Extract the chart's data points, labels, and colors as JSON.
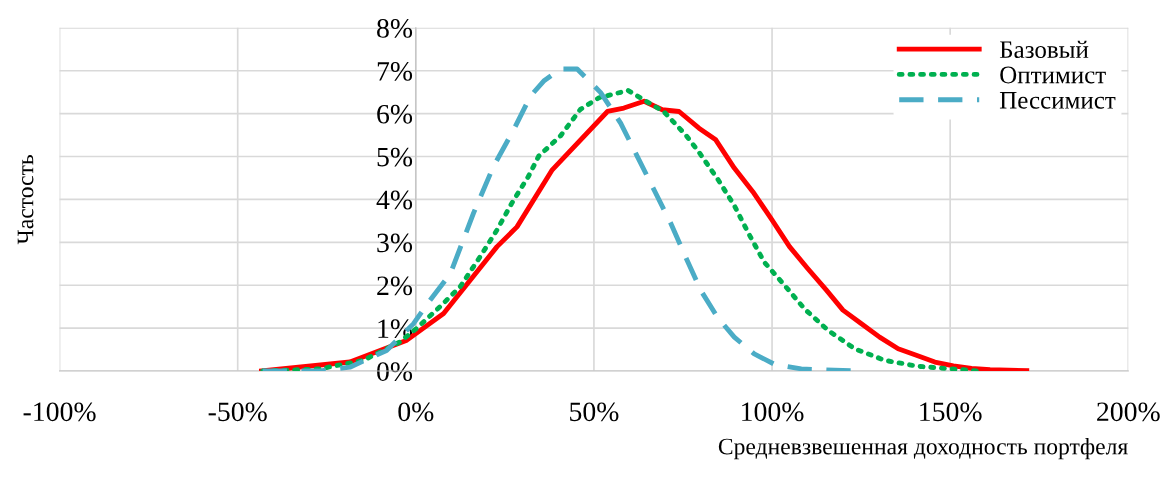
{
  "chart_data": {
    "type": "line",
    "xlabel": "Средневзвешенная доходность портфеля",
    "ylabel": "Частость",
    "xlim": [
      -100,
      200
    ],
    "ylim": [
      0,
      8
    ],
    "xticks": [
      {
        "value": -100,
        "label": "-100%"
      },
      {
        "value": -50,
        "label": "-50%"
      },
      {
        "value": 0,
        "label": "0%"
      },
      {
        "value": 50,
        "label": "50%"
      },
      {
        "value": 100,
        "label": "100%"
      },
      {
        "value": 150,
        "label": "150%"
      },
      {
        "value": 200,
        "label": "200%"
      }
    ],
    "yticks": [
      {
        "value": 0,
        "label": "0%"
      },
      {
        "value": 1,
        "label": "1%"
      },
      {
        "value": 2,
        "label": "2%"
      },
      {
        "value": 3,
        "label": "3%"
      },
      {
        "value": 4,
        "label": "4%"
      },
      {
        "value": 5,
        "label": "5%"
      },
      {
        "value": 6,
        "label": "6%"
      },
      {
        "value": 7,
        "label": "7%"
      },
      {
        "value": 8,
        "label": "8%"
      }
    ],
    "grid": true,
    "legend": "top right",
    "marker": "none",
    "series": [
      {
        "name": "Базовый",
        "color": "#ff0000",
        "line_style": "solid",
        "x": [
          -43.3,
          -18.5,
          -2.5,
          7.8,
          22.8,
          28.4,
          38.3,
          53.8,
          58.4,
          64.1,
          69.2,
          73.9,
          79.5,
          84.2,
          89.4,
          94.6,
          99.7,
          104.9,
          110,
          115.2,
          119.9,
          125,
          130.2,
          135.4,
          140.5,
          145.7,
          150.9,
          156,
          161.2,
          171.5
        ],
        "values": [
          0,
          0.21,
          0.72,
          1.34,
          2.9,
          3.36,
          4.69,
          6.05,
          6.13,
          6.29,
          6.09,
          6.05,
          5.66,
          5.39,
          4.73,
          4.18,
          3.56,
          2.9,
          2.39,
          1.89,
          1.42,
          1.11,
          0.79,
          0.52,
          0.37,
          0.21,
          0.12,
          0.06,
          0.03,
          0.01
        ]
      },
      {
        "name": "Оптимист",
        "color": "#00b050",
        "line_style": "dotted",
        "x": [
          -43,
          -27,
          -14.7,
          -4.4,
          0.3,
          6.8,
          12.5,
          18.1,
          22.8,
          27,
          31.7,
          34.5,
          40.6,
          46.2,
          51.4,
          59.6,
          69.7,
          75.8,
          79.5,
          84.7,
          89.4,
          93.2,
          97.8,
          103.5,
          109.1,
          115.7,
          123.2,
          131.6,
          141,
          150.4,
          157.9
        ],
        "values": [
          0,
          0.05,
          0.25,
          0.68,
          1.0,
          1.5,
          1.97,
          2.67,
          3.29,
          3.92,
          4.55,
          5.01,
          5.48,
          6.1,
          6.37,
          6.54,
          6.04,
          5.5,
          5.1,
          4.48,
          3.86,
          3.24,
          2.54,
          2.0,
          1.45,
          0.95,
          0.52,
          0.25,
          0.11,
          0.05,
          0
        ]
      },
      {
        "name": "Пессимист",
        "color": "#4bacc6",
        "line_style": "dashed",
        "x": [
          -43,
          -27.3,
          -18.5,
          -8.2,
          -0.7,
          4,
          9.7,
          16.2,
          21.8,
          27.5,
          32.2,
          35.9,
          40.6,
          45.3,
          50,
          51.9,
          57.5,
          62.2,
          66.9,
          71.6,
          75.3,
          80,
          84.7,
          89.4,
          95,
          100.6,
          108.2,
          117.5,
          125
        ],
        "values": [
          0,
          0,
          0.09,
          0.48,
          1.1,
          1.65,
          2.27,
          3.68,
          4.77,
          5.63,
          6.41,
          6.76,
          7.04,
          7.04,
          6.65,
          6.49,
          5.78,
          5.0,
          4.22,
          3.44,
          2.74,
          1.88,
          1.25,
          0.79,
          0.4,
          0.16,
          0.05,
          0.02,
          0
        ]
      }
    ]
  }
}
